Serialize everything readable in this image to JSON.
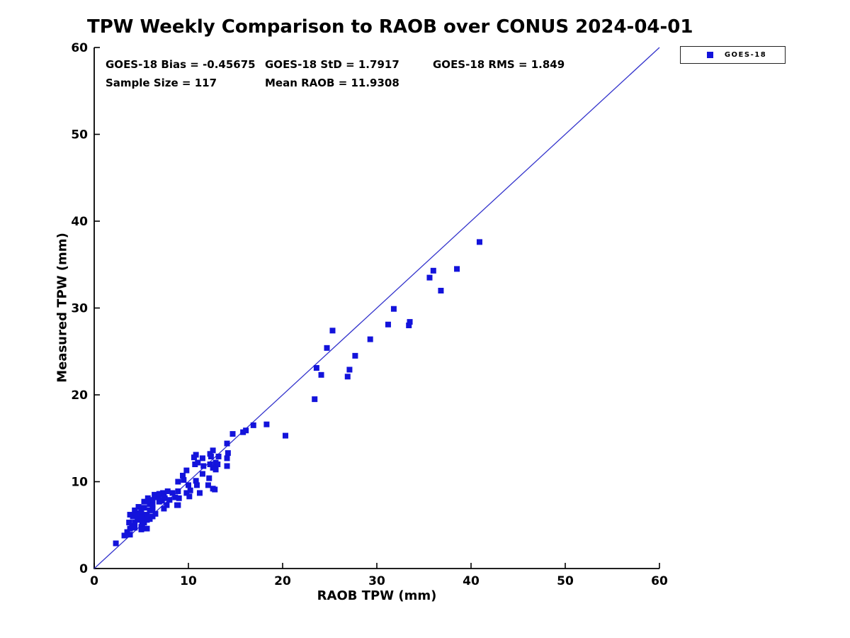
{
  "title": "TPW Weekly Comparison to RAOB over CONUS 2024-04-01",
  "stats": {
    "bias": "GOES-18 Bias = -0.45675",
    "std": "GOES-18 StD = 1.7917",
    "rms": "GOES-18 RMS = 1.849",
    "sample_size": "Sample Size = 117",
    "mean_raob": "Mean RAOB = 11.9308"
  },
  "legend": {
    "label": "GOES-18",
    "position": "top-right-outside"
  },
  "colors": {
    "marker": "#1313db",
    "reference_line": "#3333cc",
    "axis": "#000000"
  },
  "chart_data": {
    "type": "scatter",
    "title": "TPW Weekly Comparison to RAOB over CONUS 2024-04-01",
    "xlabel": "RAOB TPW (mm)",
    "ylabel": "Measured TPW (mm)",
    "xlim": [
      0,
      60
    ],
    "ylim": [
      0,
      60
    ],
    "xticks": [
      0,
      10,
      20,
      30,
      40,
      50,
      60
    ],
    "yticks": [
      0,
      10,
      20,
      30,
      40,
      50,
      60
    ],
    "grid": false,
    "legend_position": "top-right-outside",
    "reference_line": {
      "from": [
        0,
        0
      ],
      "to": [
        60,
        60
      ]
    },
    "series": [
      {
        "name": "GOES-18",
        "marker": "square",
        "color": "#1313db",
        "points": [
          [
            2.3,
            2.9
          ],
          [
            3.2,
            3.8
          ],
          [
            3.5,
            4.2
          ],
          [
            3.8,
            4.6
          ],
          [
            3.8,
            3.9
          ],
          [
            4.0,
            4.9
          ],
          [
            3.7,
            5.3
          ],
          [
            4.3,
            5.3
          ],
          [
            4.7,
            5.6
          ],
          [
            4.3,
            4.7
          ],
          [
            5.0,
            4.8
          ],
          [
            5.0,
            4.5
          ],
          [
            5.3,
            5.3
          ],
          [
            5.6,
            5.6
          ],
          [
            5.9,
            5.7
          ],
          [
            5.0,
            5.7
          ],
          [
            5.1,
            5.2
          ],
          [
            5.6,
            4.6
          ],
          [
            3.8,
            6.2
          ],
          [
            4.1,
            6.0
          ],
          [
            4.4,
            6.4
          ],
          [
            4.3,
            6.7
          ],
          [
            4.6,
            5.8
          ],
          [
            5.0,
            6.0
          ],
          [
            5.0,
            6.6
          ],
          [
            4.7,
            7.1
          ],
          [
            5.3,
            7.0
          ],
          [
            5.3,
            7.7
          ],
          [
            5.6,
            6.2
          ],
          [
            5.9,
            6.7
          ],
          [
            5.9,
            7.4
          ],
          [
            6.2,
            6.0
          ],
          [
            6.5,
            6.3
          ],
          [
            6.2,
            6.9
          ],
          [
            6.1,
            7.5
          ],
          [
            5.7,
            8.1
          ],
          [
            6.2,
            7.9
          ],
          [
            6.2,
            7.3
          ],
          [
            6.4,
            8.5
          ],
          [
            6.8,
            8.3
          ],
          [
            6.9,
            7.7
          ],
          [
            7.3,
            8.7
          ],
          [
            7.5,
            8.1
          ],
          [
            7.7,
            7.3
          ],
          [
            7.8,
            8.9
          ],
          [
            8.3,
            8.7
          ],
          [
            8.6,
            8.2
          ],
          [
            6.6,
            8.2
          ],
          [
            6.9,
            8.6
          ],
          [
            7.2,
            7.8
          ],
          [
            7.4,
            6.9
          ],
          [
            8.0,
            7.9
          ],
          [
            8.8,
            7.3
          ],
          [
            5.7,
            7.8
          ],
          [
            7.4,
            8.3
          ],
          [
            8.9,
            8.9
          ],
          [
            9.8,
            8.7
          ],
          [
            10.2,
            9.0
          ],
          [
            11.2,
            8.7
          ],
          [
            9.0,
            8.1
          ],
          [
            8.9,
            7.3
          ],
          [
            12.8,
            9.1
          ],
          [
            9.8,
            11.3
          ],
          [
            9.4,
            10.7
          ],
          [
            8.9,
            10.0
          ],
          [
            10.0,
            9.6
          ],
          [
            10.1,
            8.3
          ],
          [
            10.8,
            13.1
          ],
          [
            10.6,
            12.8
          ],
          [
            11.0,
            12.2
          ],
          [
            10.7,
            12.0
          ],
          [
            11.5,
            12.7
          ],
          [
            11.6,
            11.8
          ],
          [
            11.5,
            10.9
          ],
          [
            12.2,
            10.4
          ],
          [
            12.1,
            9.6
          ],
          [
            12.6,
            9.2
          ],
          [
            10.8,
            10.1
          ],
          [
            10.9,
            9.6
          ],
          [
            12.6,
            13.6
          ],
          [
            12.3,
            13.2
          ],
          [
            12.4,
            12.9
          ],
          [
            13.2,
            12.9
          ],
          [
            12.9,
            12.2
          ],
          [
            13.1,
            12.0
          ],
          [
            12.3,
            12.0
          ],
          [
            12.6,
            11.6
          ],
          [
            12.9,
            11.4
          ],
          [
            9.5,
            10.2
          ],
          [
            14.1,
            14.4
          ],
          [
            14.2,
            13.3
          ],
          [
            14.1,
            12.7
          ],
          [
            14.1,
            11.8
          ],
          [
            14.7,
            15.5
          ],
          [
            15.8,
            15.7
          ],
          [
            16.1,
            15.9
          ],
          [
            16.9,
            16.5
          ],
          [
            18.3,
            16.6
          ],
          [
            20.3,
            15.3
          ],
          [
            23.4,
            19.5
          ],
          [
            23.6,
            23.1
          ],
          [
            24.1,
            22.3
          ],
          [
            24.7,
            25.4
          ],
          [
            25.3,
            27.4
          ],
          [
            26.9,
            22.1
          ],
          [
            27.1,
            22.9
          ],
          [
            27.7,
            24.5
          ],
          [
            29.3,
            26.4
          ],
          [
            31.2,
            28.1
          ],
          [
            31.8,
            29.9
          ],
          [
            33.4,
            28.0
          ],
          [
            33.5,
            28.4
          ],
          [
            35.6,
            33.5
          ],
          [
            36.0,
            34.3
          ],
          [
            36.8,
            32.0
          ],
          [
            38.5,
            34.5
          ],
          [
            40.9,
            37.6
          ]
        ]
      }
    ]
  }
}
